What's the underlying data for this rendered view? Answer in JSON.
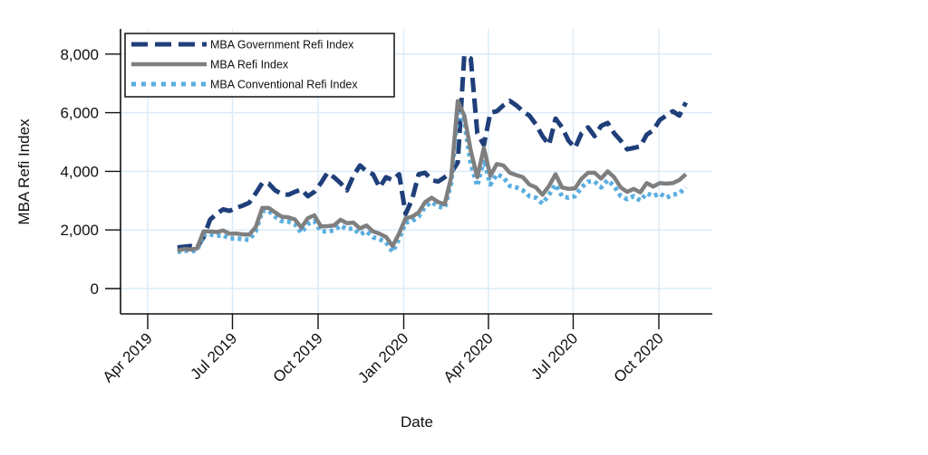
{
  "chart_data": {
    "type": "line",
    "title": "",
    "xlabel": "Date",
    "ylabel": "MBA Refi Index",
    "ylim": [
      -900,
      8800
    ],
    "xlim": [
      "2019-03-15",
      "2020-12-05"
    ],
    "grid": true,
    "legend_position": "top-left",
    "y_ticks": [
      0,
      2000,
      4000,
      6000,
      8000
    ],
    "y_tick_labels": [
      "0",
      "2,000",
      "4,000",
      "6,000",
      "8,000"
    ],
    "x_ticks": [
      "2019-04-01",
      "2019-07-01",
      "2019-10-01",
      "2020-01-01",
      "2020-04-01",
      "2020-07-01",
      "2020-10-01"
    ],
    "x_tick_labels": [
      "Apr 2019",
      "Jul 2019",
      "Oct 2019",
      "Jan 2020",
      "Apr 2020",
      "Jul 2020",
      "Oct 2020"
    ],
    "x_start": "2019-05-03",
    "x_step_days": 7,
    "series": [
      {
        "name": "MBA Government Refi Index",
        "color": "#1f3f7a",
        "style": "dashed",
        "values": [
          1400,
          1430,
          1450,
          1400,
          1750,
          2350,
          2550,
          2700,
          2650,
          2750,
          2830,
          2930,
          3250,
          3600,
          3580,
          3350,
          3230,
          3200,
          3300,
          3380,
          3150,
          3300,
          3600,
          3950,
          3800,
          3600,
          3350,
          3850,
          4200,
          4000,
          3900,
          3450,
          3800,
          3700,
          3900,
          2550,
          3050,
          3900,
          3950,
          3700,
          3650,
          3800,
          3950,
          4300,
          7950,
          7850,
          5300,
          4900,
          6000,
          6050,
          6250,
          6400,
          6250,
          6050,
          5900,
          5600,
          5200,
          4900,
          5800,
          5500,
          5050,
          4800,
          5300,
          5500,
          5200,
          5550,
          5650,
          5300,
          5050,
          4750,
          4800,
          4850,
          5250,
          5400,
          5750,
          5900,
          6050,
          5900,
          6350
        ]
      },
      {
        "name": "MBA Refi Index",
        "color": "#7f7f7f",
        "style": "solid",
        "values": [
          1300,
          1350,
          1330,
          1370,
          1950,
          1950,
          1930,
          1980,
          1870,
          1880,
          1850,
          1840,
          2100,
          2750,
          2750,
          2600,
          2450,
          2430,
          2360,
          2080,
          2400,
          2500,
          2120,
          2130,
          2150,
          2350,
          2230,
          2250,
          2050,
          2150,
          1950,
          1870,
          1760,
          1450,
          1880,
          2400,
          2450,
          2600,
          2950,
          3100,
          2950,
          2880,
          3800,
          6400,
          5900,
          4700,
          3800,
          4800,
          3850,
          4250,
          4200,
          3950,
          3870,
          3800,
          3550,
          3450,
          3200,
          3500,
          3900,
          3450,
          3400,
          3420,
          3750,
          3950,
          3950,
          3750,
          4000,
          3800,
          3450,
          3300,
          3400,
          3280,
          3600,
          3480,
          3600,
          3580,
          3600,
          3700,
          3900
        ]
      },
      {
        "name": "MBA Conventional Refi Index",
        "color": "#5aaee0",
        "style": "dotted",
        "values": [
          1250,
          1300,
          1270,
          1300,
          1850,
          1850,
          1800,
          1820,
          1700,
          1720,
          1680,
          1660,
          1950,
          2650,
          2650,
          2450,
          2300,
          2280,
          2200,
          1900,
          2200,
          2300,
          1950,
          1950,
          1980,
          2150,
          2030,
          2050,
          1850,
          1950,
          1750,
          1680,
          1580,
          1250,
          1700,
          2250,
          2300,
          2450,
          2800,
          2950,
          2800,
          2750,
          3600,
          6000,
          5700,
          4250,
          3500,
          4400,
          3550,
          3900,
          3800,
          3500,
          3450,
          3350,
          3150,
          3100,
          2900,
          3200,
          3550,
          3150,
          3100,
          3150,
          3450,
          3650,
          3650,
          3450,
          3700,
          3500,
          3150,
          3050,
          3150,
          3000,
          3250,
          3150,
          3250,
          3100,
          3200,
          3250,
          3450
        ]
      }
    ]
  }
}
